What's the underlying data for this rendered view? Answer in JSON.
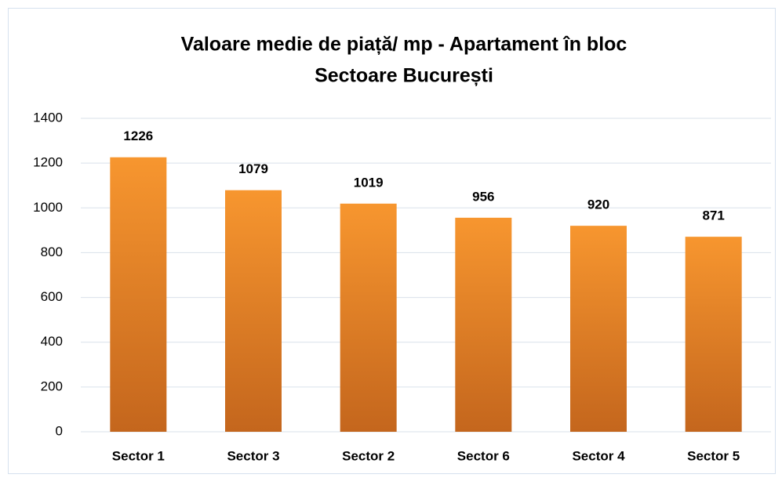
{
  "chart_data": {
    "type": "bar",
    "title": "Valoare medie de piață/ mp - Apartament în bloc",
    "subtitle": "Sectoare București",
    "categories": [
      "Sector 1",
      "Sector 3",
      "Sector 2",
      "Sector 6",
      "Sector 4",
      "Sector 5"
    ],
    "values": [
      1226,
      1079,
      1019,
      956,
      920,
      871
    ],
    "color": "#f7962f",
    "ylim": [
      0,
      1400
    ],
    "yticks": [
      0,
      200,
      400,
      600,
      800,
      1000,
      1200,
      1400
    ],
    "grid": true
  }
}
